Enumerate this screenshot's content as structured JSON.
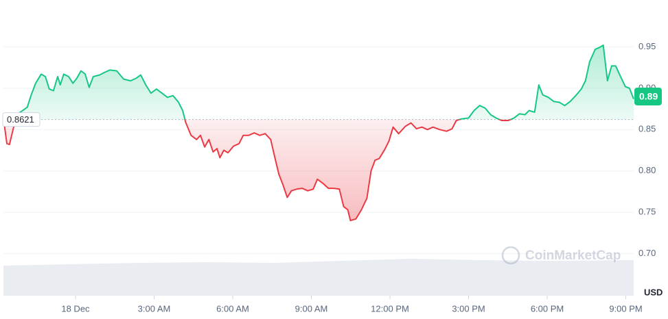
{
  "chart_data": {
    "type": "line",
    "x": [
      -2.75,
      -2.62,
      -2.52,
      -2.36,
      -2.15,
      -1.84,
      -1.7,
      -1.52,
      -1.31,
      -1.15,
      -1.0,
      -0.84,
      -0.68,
      -0.58,
      -0.45,
      -0.26,
      -0.1,
      0.05,
      0.21,
      0.37,
      0.52,
      0.68,
      0.92,
      1.1,
      1.31,
      1.57,
      1.84,
      2.1,
      2.31,
      2.49,
      2.68,
      2.88,
      3.09,
      3.3,
      3.51,
      3.72,
      3.93,
      4.09,
      4.2,
      4.41,
      4.62,
      4.77,
      4.93,
      5.09,
      5.25,
      5.4,
      5.51,
      5.66,
      5.82,
      6.03,
      6.24,
      6.4,
      6.61,
      6.82,
      7.03,
      7.24,
      7.45,
      7.61,
      7.76,
      7.92,
      8.08,
      8.24,
      8.44,
      8.65,
      8.86,
      9.07,
      9.23,
      9.44,
      9.65,
      9.86,
      10.07,
      10.23,
      10.39,
      10.49,
      10.7,
      10.91,
      11.12,
      11.28,
      11.43,
      11.59,
      11.8,
      11.96,
      12.12,
      12.33,
      12.59,
      12.8,
      13.01,
      13.22,
      13.43,
      13.64,
      13.9,
      14.16,
      14.37,
      14.53,
      14.74,
      15.0,
      15.21,
      15.42,
      15.63,
      15.84,
      16.05,
      16.26,
      16.52,
      16.73,
      16.94,
      17.15,
      17.31,
      17.52,
      17.68,
      17.83,
      18.04,
      18.25,
      18.46,
      18.67,
      18.88,
      19.09,
      19.3,
      19.46,
      19.62,
      19.83,
      19.98,
      20.14,
      20.3,
      20.46,
      20.61,
      20.77,
      20.98,
      21.14,
      21.3
    ],
    "values": [
      0.864,
      0.833,
      0.832,
      0.853,
      0.87,
      0.877,
      0.891,
      0.906,
      0.917,
      0.914,
      0.899,
      0.897,
      0.914,
      0.904,
      0.917,
      0.914,
      0.906,
      0.912,
      0.921,
      0.917,
      0.901,
      0.914,
      0.916,
      0.919,
      0.922,
      0.921,
      0.911,
      0.909,
      0.912,
      0.916,
      0.904,
      0.894,
      0.899,
      0.894,
      0.889,
      0.891,
      0.883,
      0.873,
      0.859,
      0.843,
      0.838,
      0.843,
      0.829,
      0.838,
      0.823,
      0.827,
      0.816,
      0.825,
      0.822,
      0.83,
      0.833,
      0.843,
      0.843,
      0.846,
      0.843,
      0.845,
      0.838,
      0.816,
      0.796,
      0.783,
      0.768,
      0.776,
      0.778,
      0.779,
      0.776,
      0.778,
      0.79,
      0.785,
      0.779,
      0.779,
      0.778,
      0.757,
      0.753,
      0.74,
      0.742,
      0.753,
      0.767,
      0.8,
      0.813,
      0.815,
      0.826,
      0.836,
      0.853,
      0.845,
      0.854,
      0.858,
      0.851,
      0.853,
      0.85,
      0.853,
      0.85,
      0.848,
      0.851,
      0.861,
      0.863,
      0.864,
      0.873,
      0.879,
      0.876,
      0.868,
      0.864,
      0.861,
      0.861,
      0.864,
      0.869,
      0.868,
      0.873,
      0.871,
      0.904,
      0.892,
      0.889,
      0.884,
      0.883,
      0.879,
      0.884,
      0.891,
      0.899,
      0.909,
      0.932,
      0.947,
      0.949,
      0.952,
      0.909,
      0.927,
      0.927,
      0.916,
      0.902,
      0.9,
      0.887
    ],
    "up_color": "#16c784",
    "down_color": "#ea3943",
    "baseline": 0.8621,
    "last_price": 0.89,
    "xlim": [
      -2.75,
      21.3
    ],
    "xticks": [
      {
        "value": 0,
        "label": "18 Dec"
      },
      {
        "value": 3,
        "label": "3:00 AM"
      },
      {
        "value": 6,
        "label": "6:00 AM"
      },
      {
        "value": 9,
        "label": "9:00 AM"
      },
      {
        "value": 12,
        "label": "12:00 PM"
      },
      {
        "value": 15,
        "label": "3:00 PM"
      },
      {
        "value": 18,
        "label": "6:00 PM"
      },
      {
        "value": 21,
        "label": "9:00 PM"
      }
    ],
    "ylim": [
      0.65,
      1.0
    ],
    "yticks": [
      {
        "value": 0.7,
        "label": "0.70"
      },
      0.75,
      {
        "value": 0.8,
        "label": "0.80"
      },
      0.85,
      {
        "value": 0.9,
        "label": "0.90"
      },
      0.95
    ],
    "grid": true,
    "currency": "USD",
    "watermark": "CoinMarketCap"
  }
}
